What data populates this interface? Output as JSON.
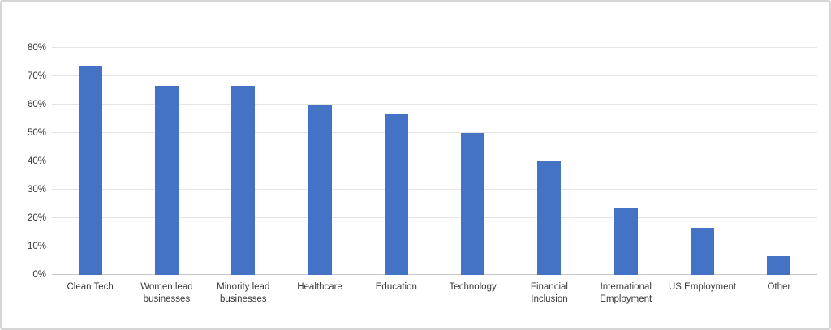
{
  "chart_data": {
    "type": "bar",
    "title": "",
    "categories": [
      "Clean Tech",
      "Women lead businesses",
      "Minority lead businesses",
      "Healthcare",
      "Education",
      "Technology",
      "Financial Inclusion",
      "International Employment",
      "US Employment",
      "Other"
    ],
    "values": [
      73.3,
      66.7,
      66.7,
      60,
      56.7,
      50,
      40,
      23.3,
      16.7,
      6.7
    ],
    "xlabel": "",
    "ylabel": "",
    "ylim": [
      0,
      80
    ],
    "ytick_step": 10,
    "ytick_labels": [
      "0%",
      "10%",
      "20%",
      "30%",
      "40%",
      "50%",
      "60%",
      "70%",
      "80%"
    ],
    "grid": "horizontal",
    "legend": "none"
  },
  "colors": {
    "bar": "#4472C4",
    "gridline": "#e4e4e4",
    "axis_line": "#c6c6c6",
    "text": "#393939",
    "frame_border": "#d6d6d6",
    "background": "#ffffff"
  }
}
